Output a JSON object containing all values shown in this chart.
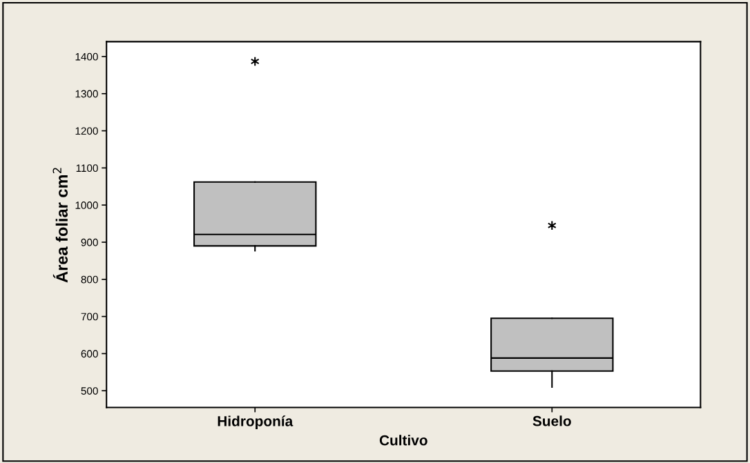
{
  "chart_data": {
    "type": "box",
    "xlabel": "Cultivo",
    "ylabel": "Área foliar cm$^{2}$",
    "categories": [
      "Hidroponía",
      "Suelo"
    ],
    "boxes": [
      {
        "low": 877,
        "q1": 890,
        "median": 921,
        "q3": 1062,
        "high": 1062,
        "outliers": [
          1387
        ]
      },
      {
        "low": 510,
        "q1": 553,
        "median": 588,
        "q3": 695,
        "high": 695,
        "outliers": [
          945
        ]
      }
    ],
    "color": "#c0c0c0",
    "ylim": [
      455,
      1440
    ],
    "yticks": [
      500,
      600,
      700,
      800,
      900,
      1000,
      1100,
      1200,
      1300,
      1400
    ],
    "grid": false
  }
}
